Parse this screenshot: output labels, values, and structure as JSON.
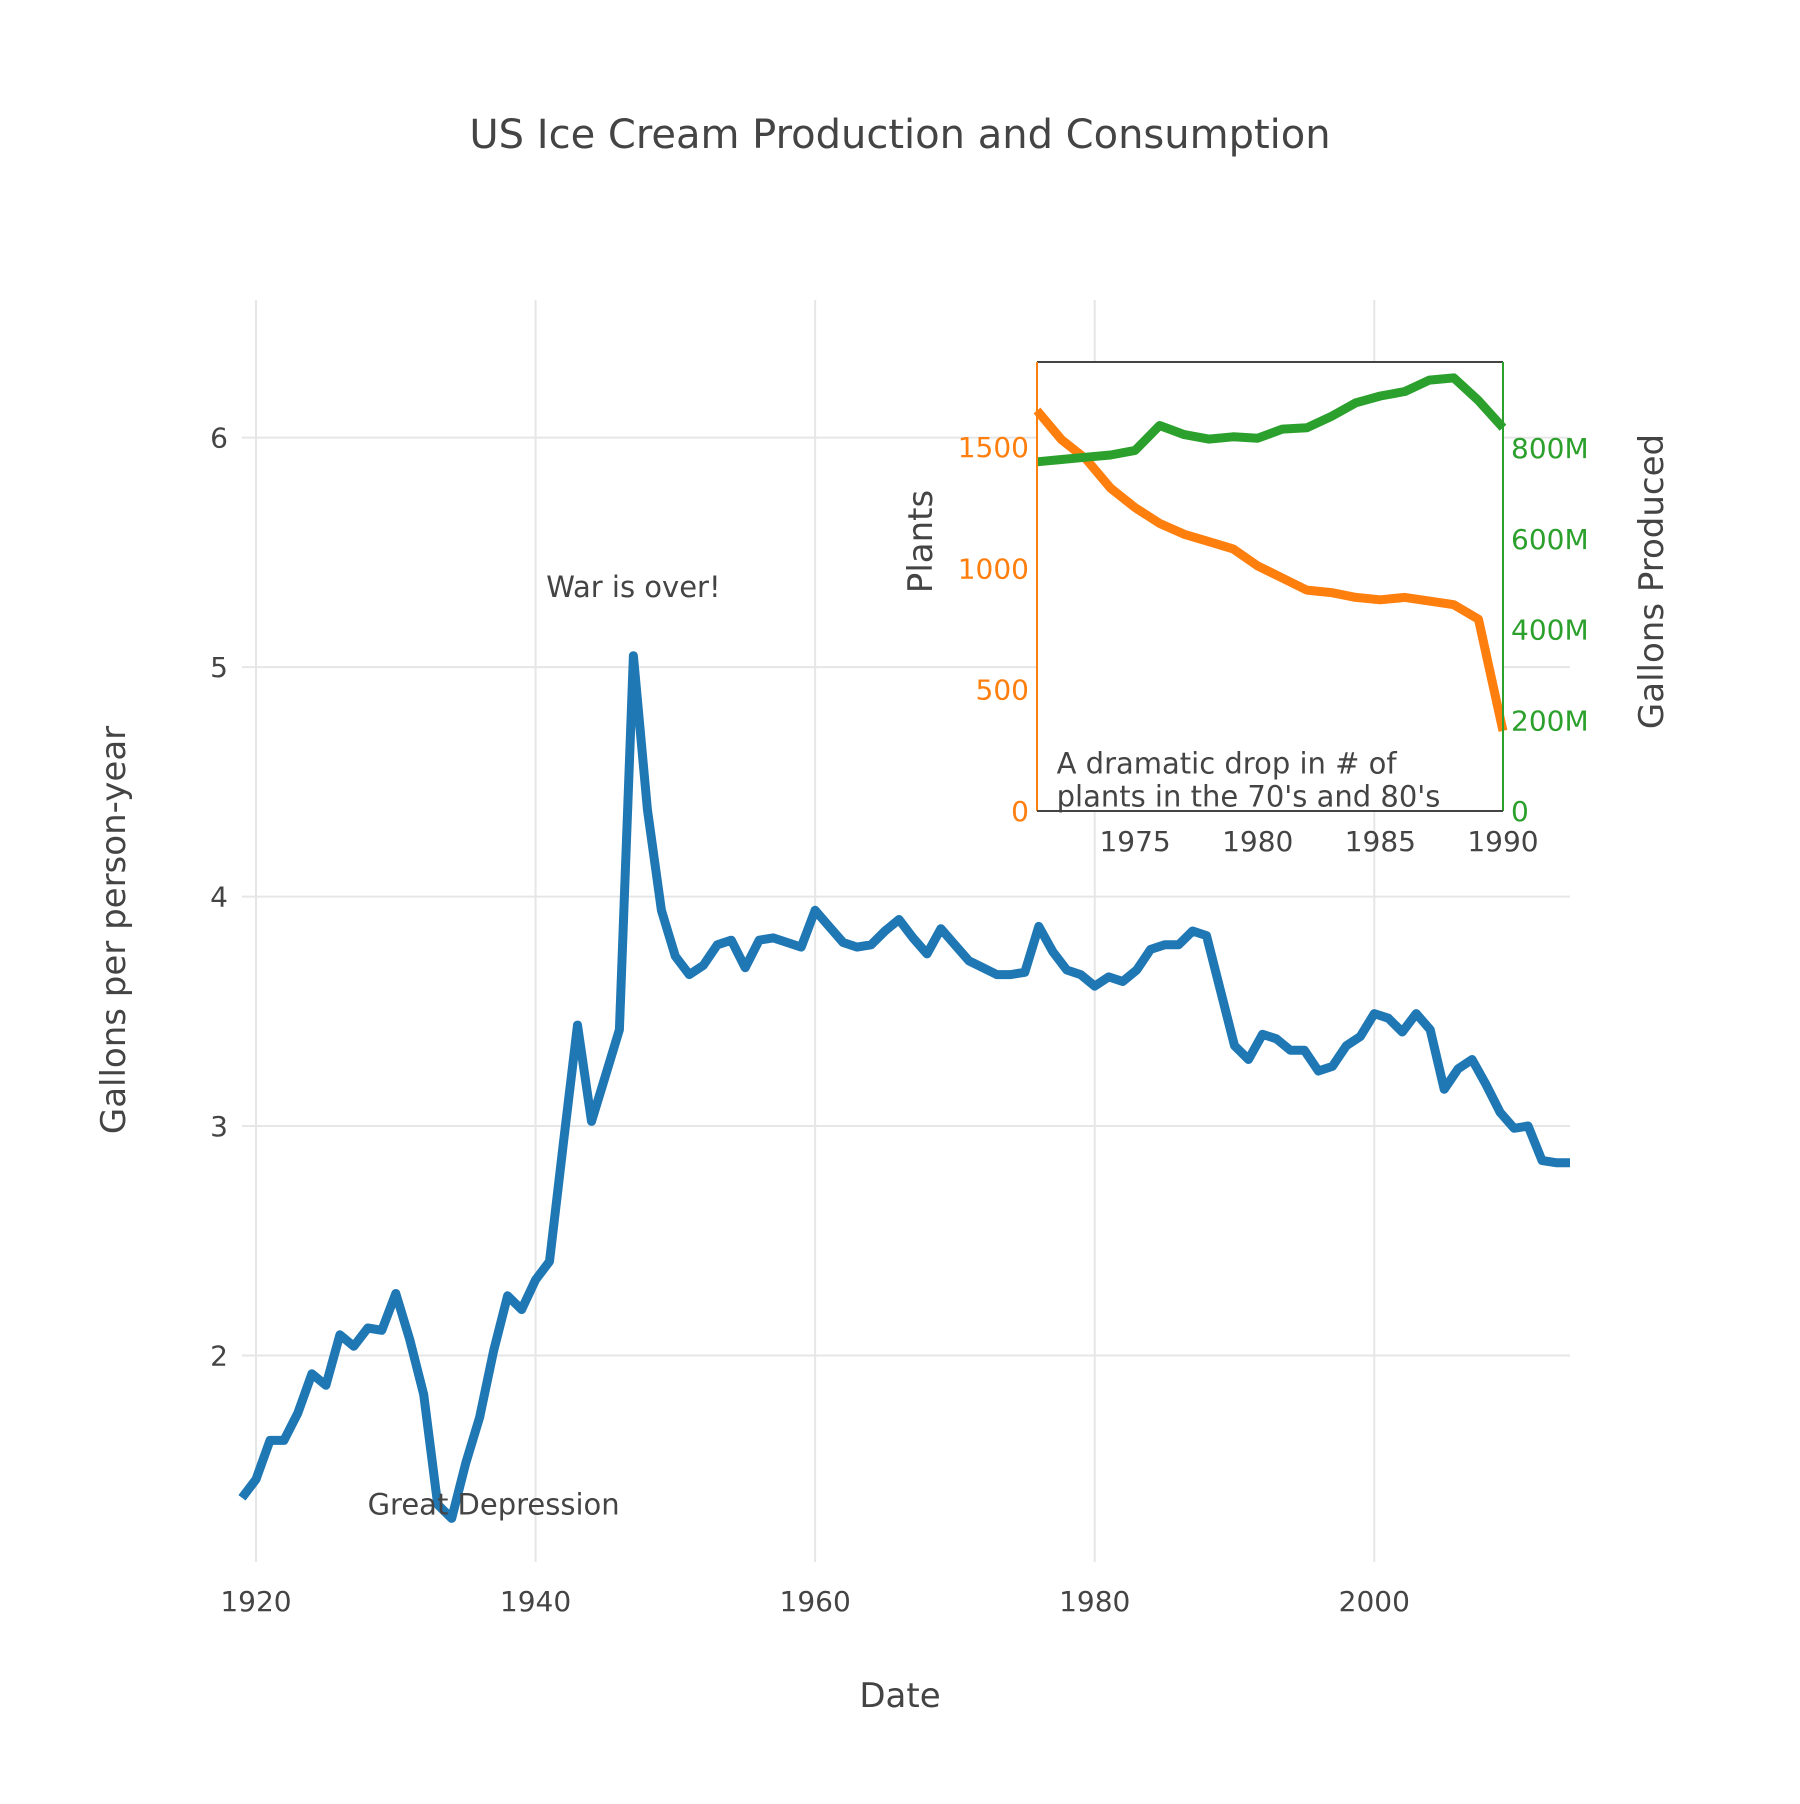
{
  "chart_data": [
    {
      "type": "line",
      "title": "US Ice Cream Production and Consumption",
      "xlabel": "Date",
      "ylabel": "Gallons per person-year",
      "xlim": [
        1919,
        2014
      ],
      "ylim": [
        1.1,
        6.6
      ],
      "grid": true,
      "x_ticks": [
        1920,
        1940,
        1960,
        1980,
        2000
      ],
      "y_ticks": [
        2,
        3,
        4,
        5,
        6
      ],
      "series": [
        {
          "color": "#1f77b4",
          "x": [
            1919,
            1920,
            1921,
            1922,
            1923,
            1924,
            1925,
            1926,
            1927,
            1928,
            1929,
            1930,
            1931,
            1932,
            1933,
            1934,
            1935,
            1936,
            1937,
            1938,
            1939,
            1940,
            1941,
            1942,
            1943,
            1944,
            1945,
            1946,
            1947,
            1948,
            1949,
            1950,
            1951,
            1952,
            1953,
            1954,
            1955,
            1956,
            1957,
            1958,
            1959,
            1960,
            1961,
            1962,
            1963,
            1964,
            1965,
            1966,
            1967,
            1968,
            1969,
            1970,
            1971,
            1972,
            1973,
            1974,
            1975,
            1976,
            1977,
            1978,
            1979,
            1980,
            1981,
            1982,
            1983,
            1984,
            1985,
            1986,
            1987,
            1988,
            1989,
            1990,
            1991,
            1992,
            1993,
            1994,
            1995,
            1996,
            1997,
            1998,
            1999,
            2000,
            2001,
            2002,
            2003,
            2004,
            2005,
            2006,
            2007,
            2008,
            2009,
            2010,
            2011,
            2012,
            2013,
            2014
          ],
          "y": [
            1.38,
            1.46,
            1.63,
            1.63,
            1.75,
            1.92,
            1.87,
            2.09,
            2.04,
            2.12,
            2.11,
            2.27,
            2.07,
            1.83,
            1.35,
            1.29,
            1.53,
            1.73,
            2.02,
            2.26,
            2.2,
            2.33,
            2.41,
            2.93,
            3.44,
            3.02,
            3.22,
            3.42,
            5.05,
            4.38,
            3.94,
            3.74,
            3.66,
            3.7,
            3.79,
            3.81,
            3.69,
            3.81,
            3.82,
            3.8,
            3.78,
            3.94,
            3.87,
            3.8,
            3.78,
            3.79,
            3.85,
            3.9,
            3.82,
            3.75,
            3.86,
            3.79,
            3.72,
            3.69,
            3.66,
            3.66,
            3.67,
            3.87,
            3.76,
            3.68,
            3.66,
            3.61,
            3.65,
            3.63,
            3.68,
            3.77,
            3.79,
            3.79,
            3.85,
            3.83,
            3.59,
            3.35,
            3.29,
            3.4,
            3.38,
            3.33,
            3.33,
            3.24,
            3.26,
            3.35,
            3.39,
            3.49,
            3.47,
            3.41,
            3.49,
            3.42,
            3.16,
            3.25,
            3.29,
            3.18,
            3.06,
            2.99,
            3.0,
            2.85,
            2.84,
            2.84
          ]
        }
      ],
      "annotations": [
        {
          "text": "War is over!",
          "x": 1947,
          "y": 5.35
        },
        {
          "text": "Great Depression",
          "x": 1937,
          "y": 1.35
        }
      ]
    },
    {
      "type": "line",
      "title": "",
      "xlabel": "",
      "ylabel": "Plants",
      "y2label": "Gallons Produced",
      "xlim": [
        1971,
        1990
      ],
      "ylim": [
        0,
        1850
      ],
      "y2lim": [
        0,
        990000000
      ],
      "x_ticks": [
        1975,
        1980,
        1985,
        1990
      ],
      "y_ticks": [
        0,
        500,
        1000,
        1500
      ],
      "y2_ticks": [
        0,
        200000000,
        400000000,
        600000000,
        800000000
      ],
      "y2_tick_labels": [
        "0",
        "200M",
        "400M",
        "600M",
        "800M"
      ],
      "series": [
        {
          "name": "Plants",
          "axis": "y",
          "color": "#ff7f0e",
          "x": [
            1971,
            1972,
            1973,
            1974,
            1975,
            1976,
            1977,
            1978,
            1979,
            1980,
            1981,
            1982,
            1983,
            1984,
            1985,
            1986,
            1987,
            1988,
            1989,
            1990
          ],
          "y": [
            1650,
            1530,
            1450,
            1330,
            1250,
            1185,
            1140,
            1110,
            1080,
            1010,
            960,
            910,
            900,
            880,
            870,
            880,
            865,
            850,
            790,
            330
          ]
        },
        {
          "name": "Gallons Produced",
          "axis": "y2",
          "color": "#2ca02c",
          "x": [
            1971,
            1972,
            1973,
            1974,
            1975,
            1976,
            1977,
            1978,
            1979,
            1980,
            1981,
            1982,
            1983,
            1984,
            1985,
            1986,
            1987,
            1988,
            1989,
            1990
          ],
          "y": [
            770000000,
            775000000,
            780000000,
            785000000,
            795000000,
            850000000,
            830000000,
            820000000,
            825000000,
            822000000,
            842000000,
            845000000,
            870000000,
            900000000,
            915000000,
            925000000,
            950000000,
            955000000,
            905000000,
            845000000
          ]
        }
      ],
      "annotations": [
        {
          "text": "A dramatic drop in # of",
          "x": 1971.8,
          "y": 195
        },
        {
          "text": "plants in the 70's and 80's",
          "x": 1971.8,
          "y": 60
        }
      ]
    }
  ]
}
